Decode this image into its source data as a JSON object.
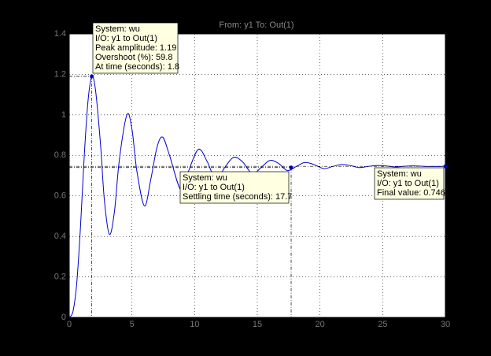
{
  "chart_data": {
    "type": "line",
    "title": "From: y1  To: Out(1)",
    "x": [
      0,
      0.3,
      0.6,
      0.9,
      1.2,
      1.5,
      1.8,
      2.1,
      2.5,
      2.8,
      3.2,
      3.6,
      4.0,
      4.6,
      5.0,
      5.4,
      6.0,
      6.5,
      7.0,
      7.45,
      8.0,
      8.9,
      9.5,
      10.3,
      11.0,
      11.7,
      12.4,
      13.1,
      13.8,
      14.6,
      15.3,
      16.0,
      16.7,
      17.4,
      18.1,
      18.8,
      19.5,
      20.3,
      21.0,
      21.7,
      22.4,
      23.1,
      23.8,
      24.5,
      25.2,
      26.0,
      26.7,
      27.4,
      28.2,
      29.0,
      30.0
    ],
    "series": [
      {
        "color": "#0000cc",
        "values": [
          0,
          0.03,
          0.17,
          0.45,
          0.8,
          1.07,
          1.19,
          1.12,
          0.85,
          0.58,
          0.41,
          0.52,
          0.78,
          1.0,
          0.93,
          0.72,
          0.55,
          0.68,
          0.84,
          0.89,
          0.8,
          0.63,
          0.72,
          0.83,
          0.77,
          0.68,
          0.74,
          0.79,
          0.77,
          0.71,
          0.74,
          0.775,
          0.76,
          0.725,
          0.745,
          0.765,
          0.755,
          0.735,
          0.745,
          0.755,
          0.75,
          0.74,
          0.745,
          0.75,
          0.748,
          0.743,
          0.746,
          0.748,
          0.746,
          0.745,
          0.746
        ]
      }
    ],
    "xlim": [
      0,
      30
    ],
    "ylim": [
      0,
      1.4
    ],
    "xticks": [
      0,
      5,
      10,
      15,
      20,
      25,
      30
    ],
    "yticks": [
      0,
      0.2,
      0.4,
      0.6,
      0.8,
      1,
      1.2,
      1.4
    ],
    "grid": true,
    "datatips": [
      {
        "x": 1.8,
        "y": 1.19,
        "lines": [
          "System: wu",
          "I/O: y1 to Out(1)",
          "Peak amplitude: 1.19",
          "Overshoot (%): 59.8",
          "At time (seconds): 1.8"
        ]
      },
      {
        "x": 17.7,
        "y": 0.74,
        "lines": [
          "System: wu",
          "I/O: y1 to Out(1)",
          "Settling time (seconds): 17.7"
        ]
      },
      {
        "x": 30,
        "y": 0.746,
        "lines": [
          "System: wu",
          "I/O: y1 to Out(1)",
          "Final value: 0.746"
        ]
      }
    ]
  }
}
